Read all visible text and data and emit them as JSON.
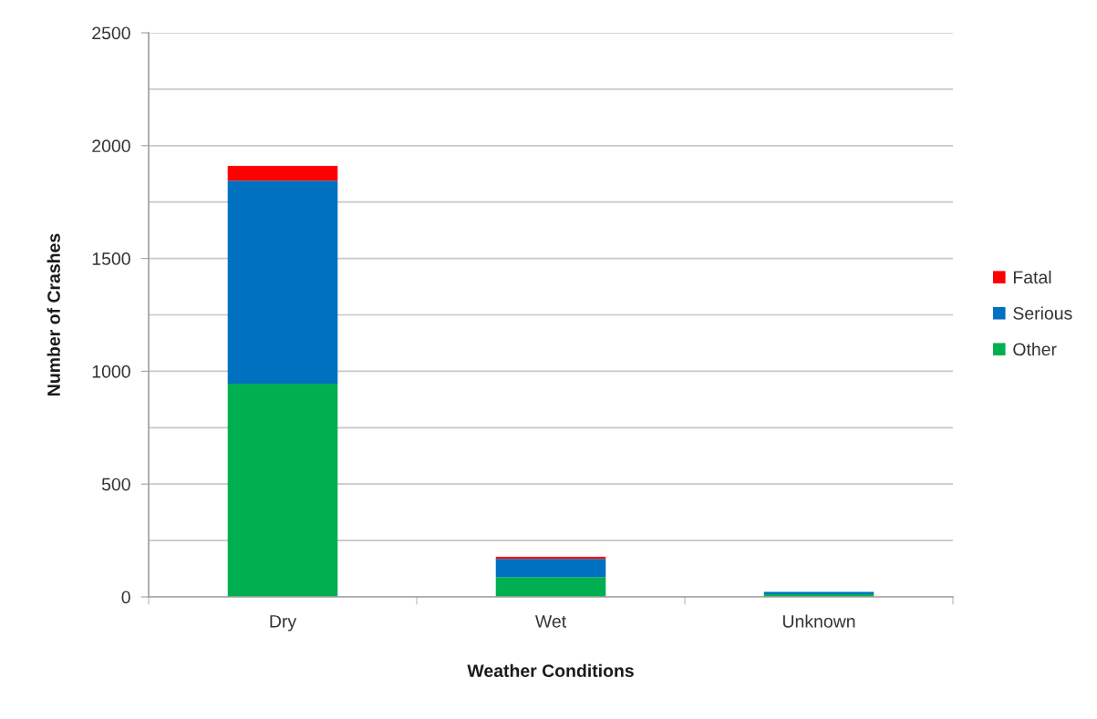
{
  "chart_data": {
    "type": "bar",
    "stacked": true,
    "xlabel": "Weather Conditions",
    "ylabel": "Number of Crashes",
    "categories": [
      "Dry",
      "Wet",
      "Unknown"
    ],
    "series": [
      {
        "name": "Other",
        "color": "#00b050",
        "values": [
          945,
          88,
          12
        ]
      },
      {
        "name": "Serious",
        "color": "#0070c0",
        "values": [
          900,
          81,
          10
        ]
      },
      {
        "name": "Fatal",
        "color": "#ff0000",
        "values": [
          65,
          9,
          0
        ]
      }
    ],
    "ylim": [
      0,
      2500
    ],
    "yticks": [
      0,
      {
        "value": 250,
        "label": null
      },
      500,
      {
        "value": 750,
        "label": null
      },
      1000,
      {
        "value": 1250,
        "label": null
      },
      1500,
      {
        "value": 1750,
        "label": null
      },
      2000,
      {
        "value": 2250,
        "label": null
      },
      2500
    ],
    "grid": "y",
    "legend": "right"
  }
}
